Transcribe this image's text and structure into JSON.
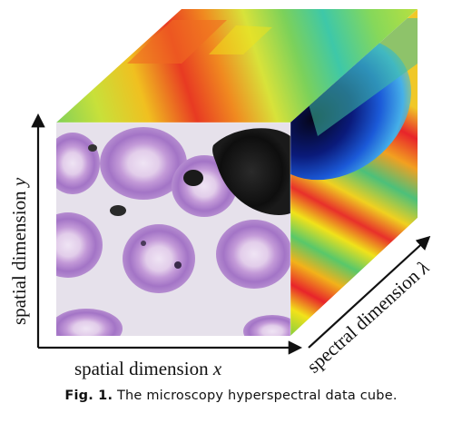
{
  "figure": {
    "axes": {
      "x": {
        "text": "spatial dimension ",
        "var": "x"
      },
      "y": {
        "text": "spatial dimension ",
        "var": "y"
      },
      "lambda": {
        "text": "spectral dimension ",
        "var": "λ"
      }
    },
    "colors": {
      "cell_stain": "#a878c8",
      "cell_center": "#e8d8f0",
      "background_tissue": "#ece7f0",
      "dark_inclusion": "#151515",
      "spectral_red": "#e8242a",
      "spectral_yellow": "#f2e21a",
      "spectral_green": "#62c74a",
      "spectral_blue": "#1b5ad8"
    }
  },
  "caption": {
    "label": "Fig. 1.",
    "text": " The microscopy hyperspectral data cube."
  }
}
